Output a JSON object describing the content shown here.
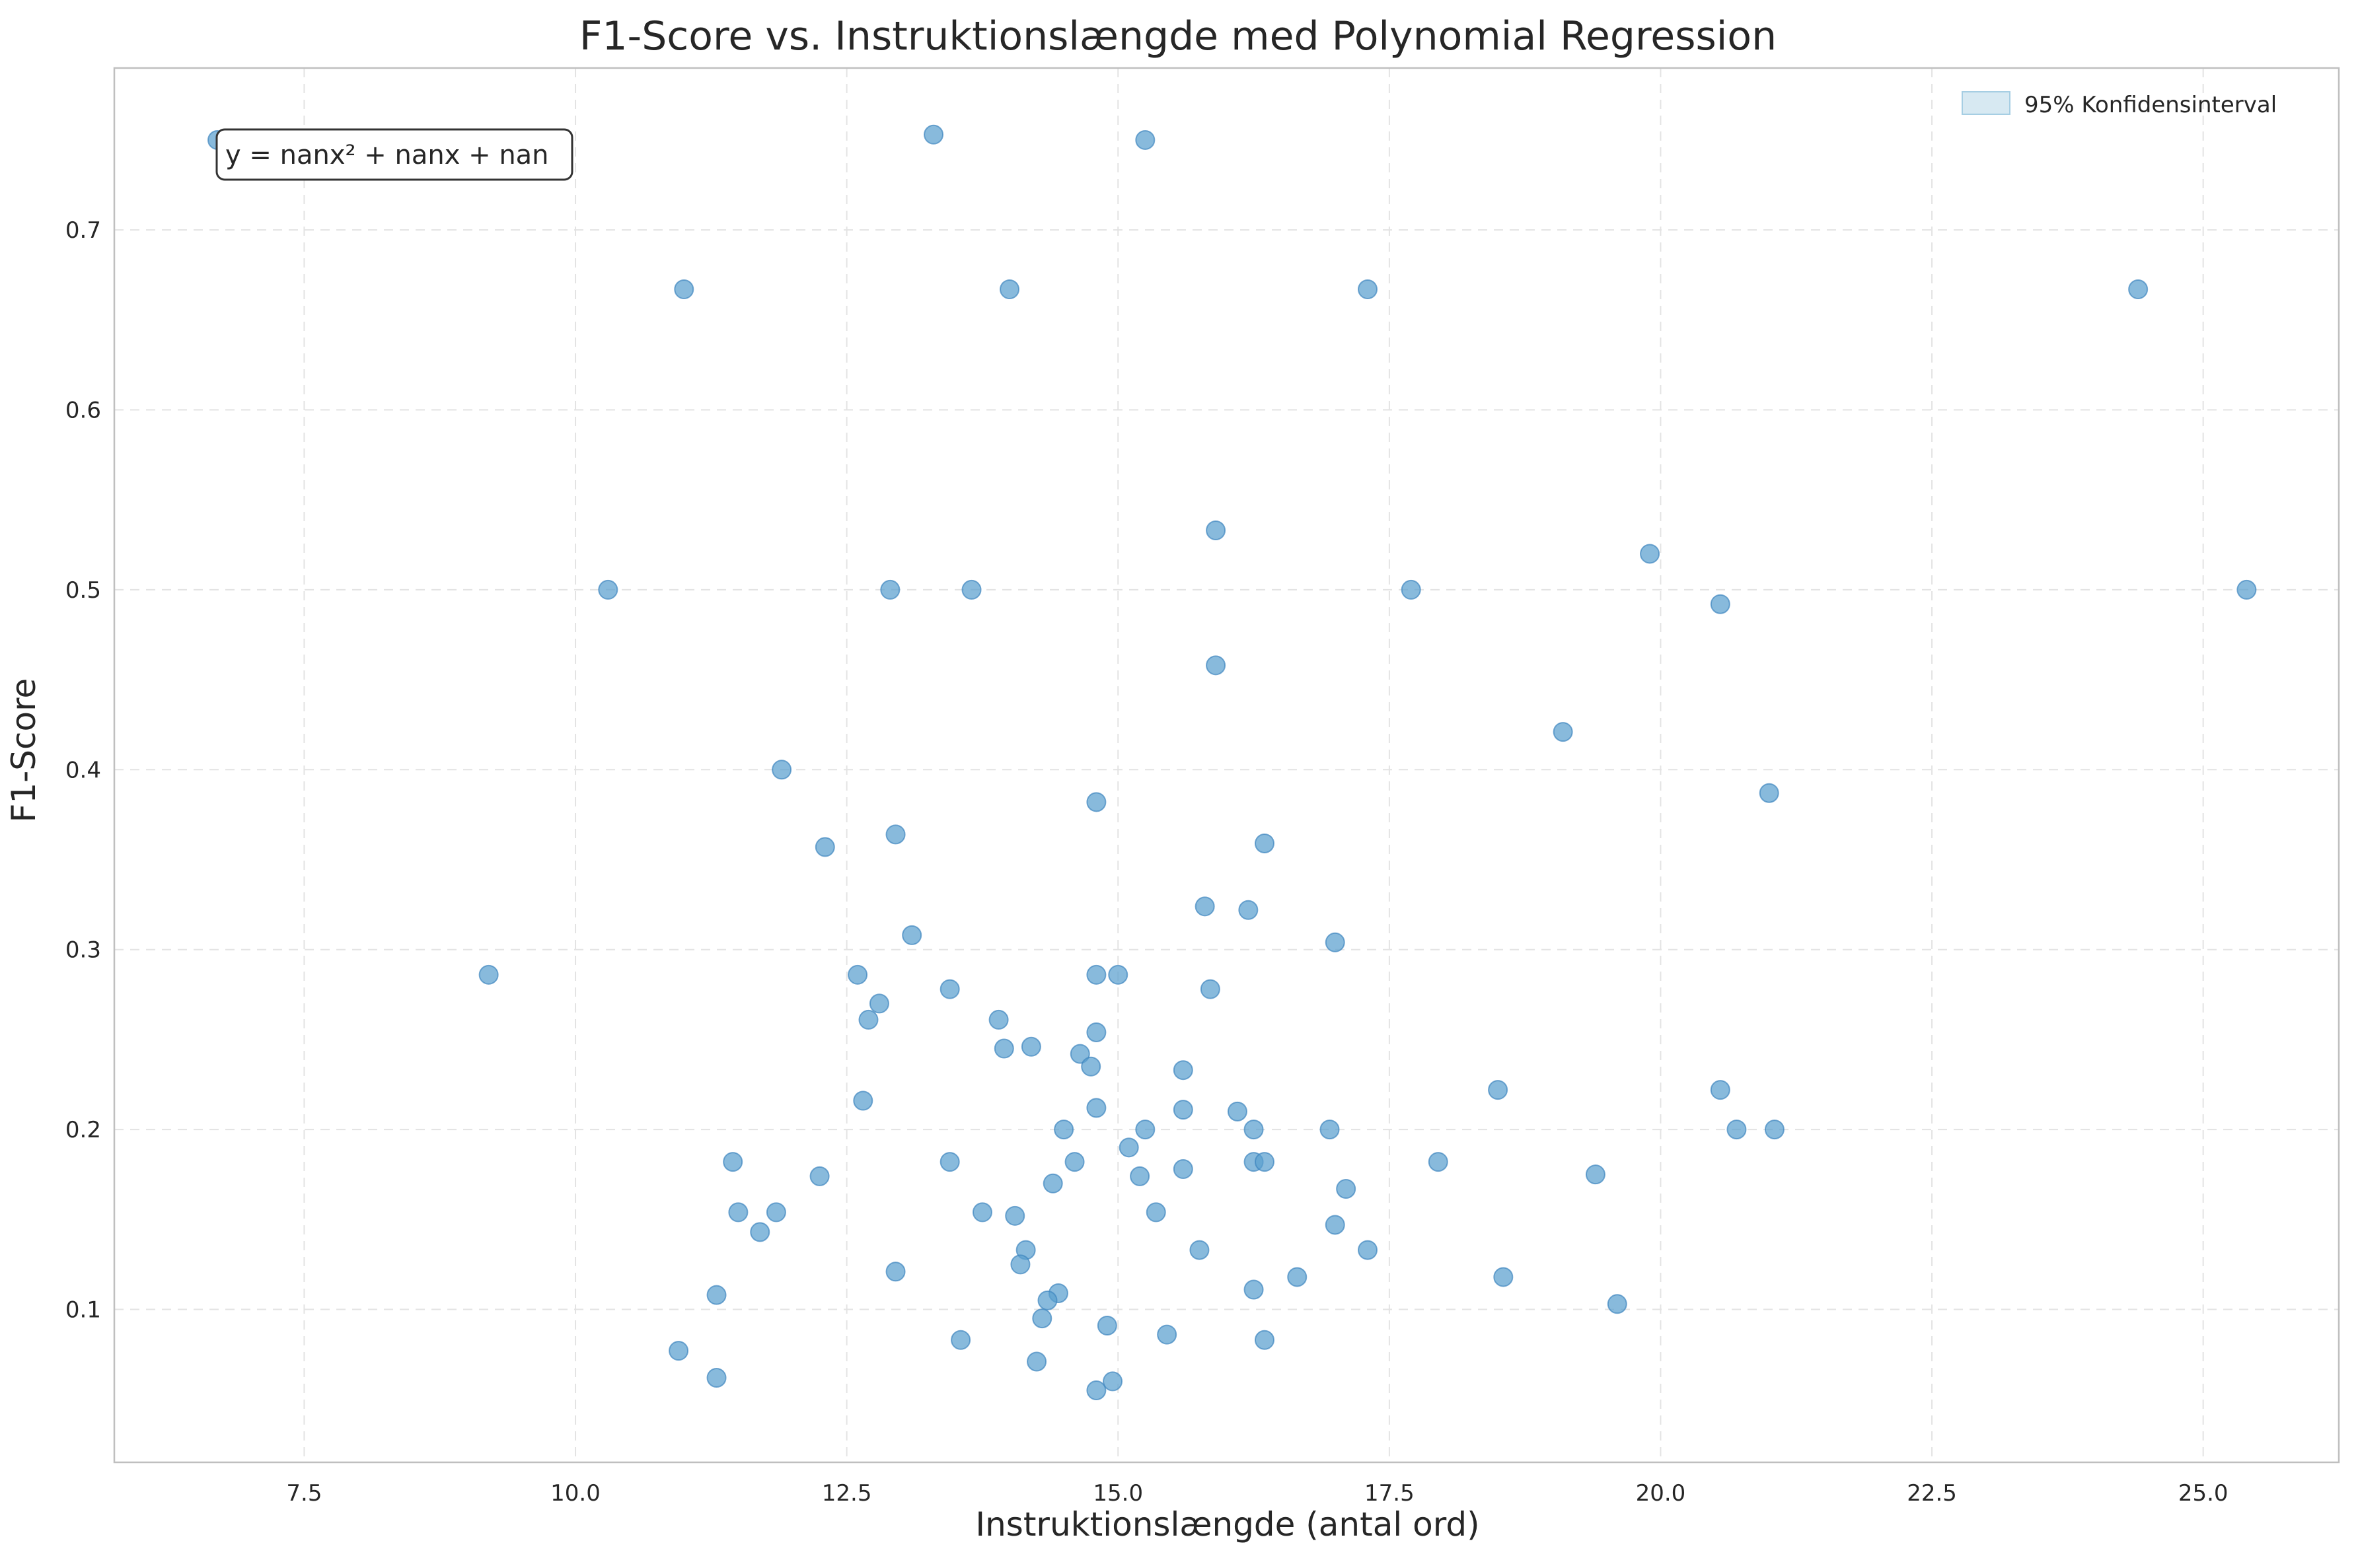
{
  "chart_data": {
    "type": "scatter",
    "title": "F1-Score vs. Instruktionslængde med Polynomial Regression",
    "xlabel": "Instruktionslængde (antal ord)",
    "ylabel": "F1-Score",
    "xlim": [
      5.75,
      26.25
    ],
    "ylim": [
      0.015,
      0.79
    ],
    "xticks": [
      7.5,
      10.0,
      12.5,
      15.0,
      17.5,
      20.0,
      22.5,
      25.0
    ],
    "xtick_labels": [
      "7.5",
      "10.0",
      "12.5",
      "15.0",
      "17.5",
      "20.0",
      "22.5",
      "25.0"
    ],
    "yticks": [
      0.1,
      0.2,
      0.3,
      0.4,
      0.5,
      0.6,
      0.7
    ],
    "ytick_labels": [
      "0.1",
      "0.2",
      "0.3",
      "0.4",
      "0.5",
      "0.6",
      "0.7"
    ],
    "grid": true,
    "legend": {
      "placement": "top-right",
      "entries": [
        {
          "label": "95% Konfidensinterval",
          "color": "#a6cee3"
        }
      ]
    },
    "annotation": "y = nanx² + nanx + nan",
    "point_color": "#5a9fcf",
    "series": [
      {
        "x": [
          6.7,
          13.3,
          15.25,
          11.0,
          14.0,
          17.3,
          24.4,
          10.3,
          12.9,
          13.65,
          17.7,
          25.4,
          15.9,
          19.9,
          20.55,
          15.9,
          19.1,
          21.0,
          11.9,
          12.3,
          12.95,
          14.8,
          16.35,
          15.8,
          16.2,
          13.1,
          17.0,
          9.2,
          12.6,
          14.8,
          15.0,
          13.45,
          15.85,
          12.8,
          12.7,
          13.9,
          14.8,
          13.95,
          14.2,
          14.65,
          14.75,
          15.6,
          12.65,
          14.8,
          18.5,
          20.55,
          15.6,
          16.1,
          14.5,
          15.25,
          16.25,
          16.95,
          20.7,
          21.05,
          15.1,
          11.45,
          13.45,
          14.6,
          16.25,
          16.35,
          17.95,
          12.25,
          15.2,
          15.6,
          19.4,
          14.4,
          17.1,
          11.5,
          11.85,
          13.75,
          14.05,
          15.35,
          11.7,
          17.0,
          14.15,
          15.75,
          17.3,
          14.1,
          12.95,
          16.65,
          18.55,
          16.25,
          11.3,
          14.45,
          14.35,
          19.6,
          14.3,
          14.9,
          10.95,
          15.45,
          13.55,
          16.35,
          14.25,
          11.3,
          14.95,
          14.8
        ],
        "y": [
          0.75,
          0.753,
          0.75,
          0.667,
          0.667,
          0.667,
          0.667,
          0.5,
          0.5,
          0.5,
          0.5,
          0.5,
          0.533,
          0.52,
          0.492,
          0.458,
          0.421,
          0.387,
          0.4,
          0.357,
          0.364,
          0.382,
          0.359,
          0.324,
          0.322,
          0.308,
          0.304,
          0.286,
          0.286,
          0.286,
          0.286,
          0.278,
          0.278,
          0.27,
          0.261,
          0.261,
          0.254,
          0.245,
          0.246,
          0.242,
          0.235,
          0.233,
          0.216,
          0.212,
          0.222,
          0.222,
          0.211,
          0.21,
          0.2,
          0.2,
          0.2,
          0.2,
          0.2,
          0.2,
          0.19,
          0.182,
          0.182,
          0.182,
          0.182,
          0.182,
          0.182,
          0.174,
          0.174,
          0.178,
          0.175,
          0.17,
          0.167,
          0.154,
          0.154,
          0.154,
          0.152,
          0.154,
          0.143,
          0.147,
          0.133,
          0.133,
          0.133,
          0.125,
          0.121,
          0.118,
          0.118,
          0.111,
          0.108,
          0.109,
          0.105,
          0.103,
          0.095,
          0.091,
          0.077,
          0.086,
          0.083,
          0.083,
          0.071,
          0.062,
          0.06,
          0.055
        ]
      }
    ]
  }
}
